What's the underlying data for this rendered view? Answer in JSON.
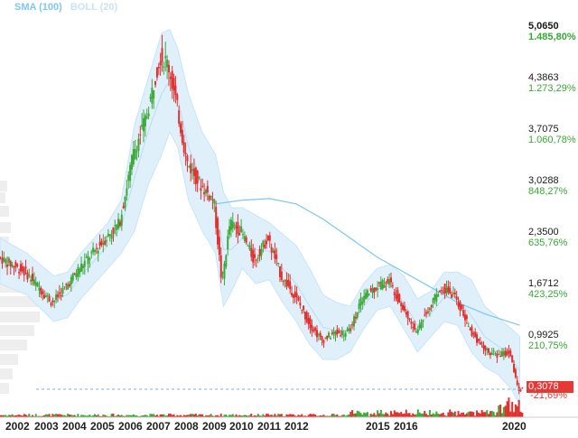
{
  "legend": {
    "sma": "SMA (100)",
    "boll": "BOLL (20)",
    "sma_color": "#7dc7f0",
    "boll_color": "#c7e4f7"
  },
  "y_levels": [
    {
      "price": "5,0650",
      "pct": "1.485,80%"
    },
    {
      "price": "4,3863",
      "pct": "1.273,29%"
    },
    {
      "price": "3,7075",
      "pct": "1.060,78%"
    },
    {
      "price": "3,0288",
      "pct": "848,27%"
    },
    {
      "price": "2,3500",
      "pct": "635,76%"
    },
    {
      "price": "1,6712",
      "pct": "423,25%"
    },
    {
      "price": "0,9925",
      "pct": "210,75%"
    }
  ],
  "current": {
    "price": "0,3078",
    "pct": "-21,69%"
  },
  "colors": {
    "up": "#3ea83a",
    "down": "#e0312f",
    "band": "#dff0fb",
    "price_label": "#1a1a1a",
    "pct_label": "#35a935"
  },
  "chart_data": {
    "type": "line",
    "x_ticks": [
      "2002",
      "2003",
      "2004",
      "2005",
      "2006",
      "2007",
      "2008",
      "2009",
      "2010",
      "2011",
      "2012",
      "2015",
      "2016",
      "2020"
    ],
    "series": [
      {
        "name": "SMA (100)",
        "x": [
          2002.3,
          2009.0,
          2010.0,
          2011.0,
          2012.0,
          2013.0,
          2014.0,
          2015.0,
          2016.0,
          2017.0,
          2018.0,
          2019.0,
          2020.3
        ],
        "y": [
          null,
          2.75,
          2.8,
          2.82,
          2.75,
          2.55,
          2.3,
          2.05,
          1.85,
          1.65,
          1.45,
          1.3,
          1.15
        ]
      }
    ],
    "price_path": {
      "x": [
        2001.0,
        2002.0,
        2003.0,
        2003.5,
        2004.0,
        2005.0,
        2005.5,
        2006.0,
        2006.5,
        2007.0,
        2007.3,
        2007.6,
        2008.0,
        2008.5,
        2009.0,
        2009.3,
        2009.6,
        2010.0,
        2010.5,
        2011.0,
        2011.5,
        2012.0,
        2012.5,
        2013.0,
        2013.5,
        2014.0,
        2014.5,
        2015.0,
        2015.5,
        2016.0,
        2016.5,
        2017.0,
        2017.5,
        2018.0,
        2018.5,
        2019.0,
        2019.5,
        2020.0,
        2020.3
      ],
      "y": [
        2.05,
        1.85,
        1.45,
        1.65,
        1.9,
        2.3,
        2.5,
        3.4,
        3.9,
        4.7,
        4.6,
        4.1,
        3.3,
        3.0,
        2.8,
        1.7,
        2.5,
        2.4,
        2.0,
        2.3,
        1.8,
        1.55,
        1.2,
        0.95,
        1.05,
        1.05,
        1.5,
        1.65,
        1.75,
        1.4,
        1.05,
        1.4,
        1.65,
        1.5,
        1.1,
        0.85,
        0.75,
        0.8,
        0.3
      ]
    },
    "band_upper": [
      2.3,
      2.1,
      1.8,
      1.85,
      2.1,
      2.5,
      2.8,
      3.8,
      4.4,
      5.0,
      5.05,
      4.8,
      4.2,
      3.7,
      3.4,
      2.9,
      2.7,
      2.7,
      2.6,
      2.5,
      2.35,
      2.2,
      1.9,
      1.55,
      1.45,
      1.4,
      1.7,
      1.9,
      1.95,
      1.8,
      1.5,
      1.6,
      1.85,
      1.85,
      1.75,
      1.4,
      1.25,
      1.1,
      1.0
    ],
    "band_lower": [
      1.7,
      1.55,
      1.2,
      1.25,
      1.5,
      1.9,
      2.1,
      2.4,
      3.0,
      3.4,
      3.7,
      3.5,
      2.8,
      2.4,
      2.1,
      1.4,
      1.6,
      1.9,
      1.7,
      1.75,
      1.45,
      1.2,
      0.9,
      0.7,
      0.7,
      0.8,
      1.1,
      1.35,
      1.4,
      1.1,
      0.8,
      1.0,
      1.2,
      1.15,
      0.8,
      0.6,
      0.5,
      0.3,
      0.1
    ],
    "y_range": [
      0.2,
      5.2
    ],
    "x_range": [
      2001.0,
      2020.45
    ],
    "grid": false,
    "legend_position": "top-left"
  }
}
